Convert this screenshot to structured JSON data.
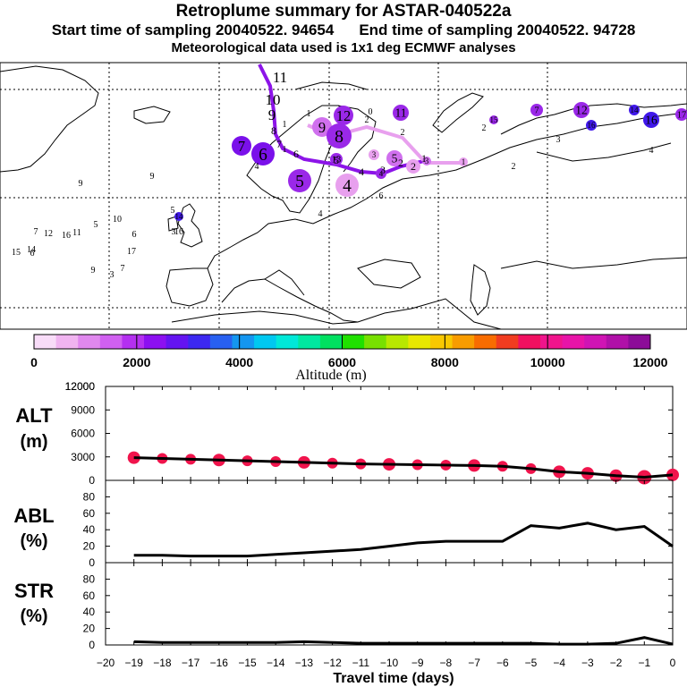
{
  "header": {
    "title": "Retroplume summary for ASTAR-040522a",
    "start_label": "Start time of sampling 20040522. 94654",
    "end_label": "End time of sampling 20040522. 94728",
    "met_label": "Meteorological data used is 1x1 deg ECMWF analyses"
  },
  "colorbar": {
    "label": "Altitude (m)",
    "ticks": [
      "0",
      "2000",
      "4000",
      "6000",
      "8000",
      "10000",
      "12000"
    ],
    "colors": [
      "#f8dcf8",
      "#f0b4f0",
      "#e088ee",
      "#d060f0",
      "#b430f0",
      "#8c10f0",
      "#6414f0",
      "#3c28f0",
      "#2860f0",
      "#1496f0",
      "#00c8f0",
      "#00e8d8",
      "#00e8a0",
      "#00e060",
      "#20e000",
      "#78e000",
      "#b8e800",
      "#e8e800",
      "#f8c800",
      "#f89c00",
      "#f86c00",
      "#f03c20",
      "#f01060",
      "#f0148c",
      "#e814a8",
      "#d014b4",
      "#b010a8",
      "#8c0c98"
    ]
  },
  "map": {
    "track_labels": [
      "11",
      "10",
      "9",
      "8",
      "7",
      "6",
      "5",
      "4",
      "3",
      "2",
      "1"
    ],
    "cluster_labels": [
      "1",
      "2",
      "3",
      "4",
      "5",
      "6",
      "7",
      "8",
      "9",
      "10",
      "11",
      "12",
      "13",
      "14",
      "15",
      "16",
      "17"
    ]
  },
  "chart_data": [
    {
      "type": "scatter+line",
      "title": "ALT",
      "unit": "(m)",
      "xlabel": "Travel time (days)",
      "ylim": [
        0,
        12000
      ],
      "yticks": [
        "0",
        "3000",
        "6000",
        "9000",
        "12000"
      ],
      "x": [
        -19,
        -18,
        -17,
        -16,
        -15,
        -14,
        -13,
        -12,
        -11,
        -10,
        -9,
        -8,
        -7,
        -6,
        -5,
        -4,
        -3,
        -2,
        -1,
        0
      ],
      "values": [
        2900,
        2800,
        2700,
        2600,
        2500,
        2400,
        2300,
        2200,
        2100,
        2050,
        2000,
        1950,
        1900,
        1800,
        1500,
        1100,
        900,
        600,
        400,
        700
      ],
      "marker_color": "#f0144c"
    },
    {
      "type": "line",
      "title": "ABL",
      "unit": "(%)",
      "ylim": [
        0,
        100
      ],
      "yticks": [
        "0",
        "20",
        "40",
        "60",
        "80"
      ],
      "x": [
        -19,
        -18,
        -17,
        -16,
        -15,
        -14,
        -13,
        -12,
        -11,
        -10,
        -9,
        -8,
        -7,
        -6,
        -5,
        -4,
        -3,
        -2,
        -1,
        0
      ],
      "values": [
        9,
        9,
        8,
        8,
        8,
        10,
        12,
        14,
        16,
        20,
        24,
        26,
        26,
        26,
        45,
        42,
        48,
        40,
        44,
        20
      ]
    },
    {
      "type": "line",
      "title": "STR",
      "unit": "(%)",
      "ylim": [
        0,
        100
      ],
      "yticks": [
        "0",
        "20",
        "40",
        "60",
        "80"
      ],
      "x": [
        -19,
        -18,
        -17,
        -16,
        -15,
        -14,
        -13,
        -12,
        -11,
        -10,
        -9,
        -8,
        -7,
        -6,
        -5,
        -4,
        -3,
        -2,
        -1,
        0
      ],
      "values": [
        4,
        3,
        3,
        3,
        3,
        3,
        4,
        3,
        2,
        2,
        2,
        2,
        2,
        2,
        2,
        1,
        1,
        2,
        9,
        1
      ]
    }
  ],
  "xaxis": {
    "label": "Travel time (days)",
    "ticks": [
      "−20",
      "−19",
      "−18",
      "−17",
      "−16",
      "−15",
      "−14",
      "−13",
      "−12",
      "−11",
      "−10",
      "−9",
      "−8",
      "−7",
      "−6",
      "−5",
      "−4",
      "−3",
      "−2",
      "−1",
      "0"
    ]
  }
}
